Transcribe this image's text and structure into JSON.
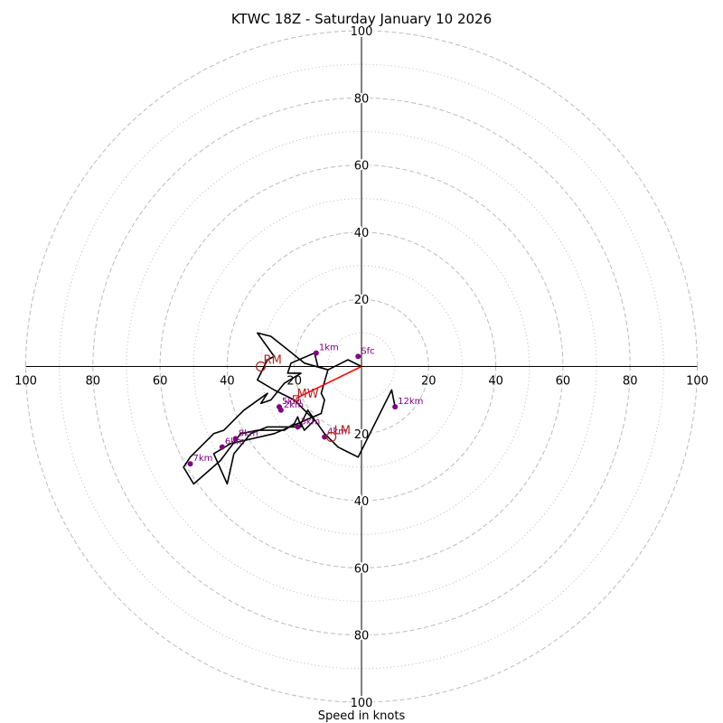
{
  "chart_data": {
    "type": "hodograph",
    "title": "KTWC 18Z - Saturday January 10 2026",
    "xlabel": "Speed in knots",
    "units": "knots",
    "range": [
      -100,
      100
    ],
    "ring_major": [
      20,
      40,
      60,
      80,
      100
    ],
    "ring_minor": [
      10,
      30,
      50,
      70,
      90
    ],
    "axis_tick_labels": [
      "100",
      "80",
      "60",
      "40",
      "20",
      "20",
      "40",
      "60",
      "80",
      "100"
    ],
    "trace": {
      "u": [
        0,
        -4,
        -10,
        -13,
        -14,
        -21,
        -22,
        -18,
        -23,
        -27,
        -30,
        -28,
        -35,
        -37,
        -41,
        -44,
        -44,
        -47,
        -51,
        -53,
        -50,
        -42,
        -36,
        -31,
        -23,
        -20,
        -19,
        -18,
        -28,
        -33,
        -33,
        -38,
        -40,
        -44,
        -39,
        -26,
        -12,
        -11,
        -12,
        -10,
        -17,
        -22,
        -27,
        -31,
        -26,
        -28,
        -29,
        -31,
        -26,
        -20,
        -17,
        -14,
        -17,
        -18,
        -16,
        -11,
        -10,
        -7,
        -1,
        9,
        10
      ],
      "v": [
        0,
        2,
        -1,
        0,
        4,
        1,
        -2,
        -2,
        -5,
        -10,
        -11,
        -8,
        -13,
        -15,
        -19,
        -20,
        -20,
        -23,
        -27,
        -30,
        -35,
        -28,
        -20,
        -19,
        -19,
        -17,
        -15,
        -18,
        -18,
        -20,
        -20,
        -26,
        -35,
        -26,
        -23,
        -20,
        -14,
        -10,
        -8,
        -1,
        1,
        5,
        9,
        10,
        3,
        2,
        0,
        -4,
        -7,
        -10,
        -13,
        -16,
        -19,
        -17,
        -13,
        -20,
        -21,
        -24,
        -27,
        -7,
        -12
      ]
    },
    "height_markers": [
      {
        "label": "Sfc",
        "u": -1,
        "v": 3
      },
      {
        "label": "1km",
        "u": -13.5,
        "v": 4
      },
      {
        "label": "2km",
        "u": -24,
        "v": -13
      },
      {
        "label": "3km",
        "u": -19,
        "v": -18
      },
      {
        "label": "4km",
        "u": -11,
        "v": -21
      },
      {
        "label": "5km",
        "u": -24.5,
        "v": -12
      },
      {
        "label": "6km",
        "u": -41.5,
        "v": -24
      },
      {
        "label": "7km",
        "u": -51,
        "v": -29
      },
      {
        "label": "8km",
        "u": -37.5,
        "v": -21.5
      },
      {
        "label": "12km",
        "u": 10,
        "v": -12
      }
    ],
    "storm_motion": {
      "RM": {
        "label": "RM",
        "u": -30,
        "v": 0
      },
      "LM": {
        "label": "LM",
        "u": -9,
        "v": -21
      },
      "MW": {
        "label": "MW",
        "u": -19.5,
        "v": -9.5
      }
    },
    "colors": {
      "trace": "#000000",
      "marker": "#800080",
      "storm": "#b22222",
      "mean_wind": "#ff0000",
      "grid": "#bbbbbb"
    }
  }
}
